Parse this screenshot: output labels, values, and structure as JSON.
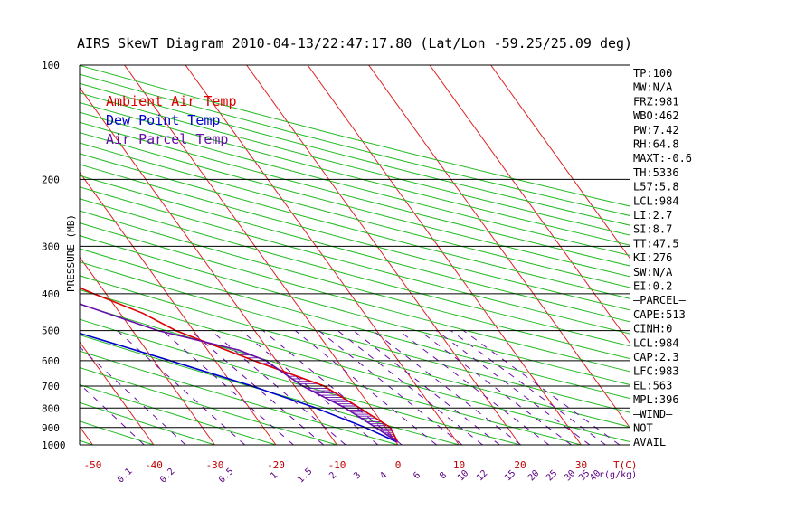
{
  "title": "AIRS SkewT Diagram 2010-04-13/22:47:17.80 (Lat/Lon -59.25/25.09 deg)",
  "colors": {
    "ambient": "#dd0000",
    "dewpoint": "#0000cc",
    "parcel": "#6a0dad",
    "isotherm": "#dd2222",
    "dry_adiabat": "#22bb22",
    "mixing_ratio": "#6a0dad",
    "isobar": "#000000",
    "cape_hatch": "#6a0dad"
  },
  "legend": [
    {
      "label": "Ambient Air Temp",
      "color": "#dd0000"
    },
    {
      "label": "Dew Point Temp",
      "color": "#0000cc"
    },
    {
      "label": "Air Parcel Temp",
      "color": "#6a0dad"
    }
  ],
  "chart_data": {
    "type": "line",
    "title": "AIRS SkewT Diagram 2010-04-13/22:47:17.80 (Lat/Lon -59.25/25.09 deg)",
    "ylabel": "PRESSURE (MB)",
    "y_scale": "log",
    "ylim": [
      1000,
      100
    ],
    "pressure_ticks": [
      100,
      200,
      300,
      400,
      500,
      600,
      700,
      800,
      900,
      1000
    ],
    "temp_top_ticks": [
      -120,
      -110,
      -100,
      -90,
      -80,
      -70,
      -60,
      -50,
      -40
    ],
    "temp_bottom_ticks": [
      -50,
      -40,
      -30,
      -20,
      -10,
      0,
      10,
      20,
      30
    ],
    "temp_bottom_unit": "T(C)",
    "mixing_ratio_ticks": [
      "0.1",
      "0.2",
      "0.5",
      "1",
      "1.5",
      "2",
      "3",
      "4",
      "6",
      "8",
      "10",
      "12",
      "15",
      "20",
      "25",
      "30",
      "35",
      "40"
    ],
    "mixing_ratio_unit": "r(g/kg)",
    "series": [
      {
        "name": "Ambient Air Temp",
        "points": [
          [
            100,
            -43.2
          ],
          [
            200,
            -53.7
          ],
          [
            250,
            -49.4
          ],
          [
            300,
            -46.4
          ],
          [
            350,
            -37.9
          ],
          [
            400,
            -32.0
          ],
          [
            450,
            -26.3
          ],
          [
            500,
            -22.9
          ],
          [
            600,
            -13.7
          ],
          [
            700,
            -5.2
          ],
          [
            800,
            -1.9
          ],
          [
            900,
            0.8
          ],
          [
            981,
            0.3
          ]
        ]
      },
      {
        "name": "Dew Point Temp",
        "points": [
          [
            100,
            -100.5
          ],
          [
            150,
            -88.4
          ],
          [
            200,
            -80.9
          ],
          [
            250,
            -73.6
          ],
          [
            300,
            -66.2
          ],
          [
            400,
            -55.8
          ],
          [
            500,
            -40.1
          ],
          [
            600,
            -27.4
          ],
          [
            700,
            -17.0
          ],
          [
            800,
            -9.1
          ],
          [
            900,
            -3.3
          ],
          [
            981,
            0.1
          ]
        ]
      },
      {
        "name": "Air Parcel Temp",
        "points": [
          [
            100,
            -120.3
          ],
          [
            150,
            -96.7
          ],
          [
            200,
            -81.7
          ],
          [
            300,
            -58.9
          ],
          [
            400,
            -39.2
          ],
          [
            500,
            -25.8
          ],
          [
            563,
            -14.9
          ],
          [
            600,
            -11.7
          ],
          [
            700,
            -8.7
          ],
          [
            800,
            -4.3
          ],
          [
            900,
            -1.6
          ],
          [
            983,
            0.3
          ]
        ]
      }
    ]
  },
  "stats": [
    "TP:100",
    "MW:N/A",
    "FRZ:981",
    "WBO:462",
    "PW:7.42",
    "RH:64.8",
    "MAXT:-0.6",
    "TH:5336",
    "L57:5.8",
    "LCL:984",
    "LI:2.7",
    "SI:8.7",
    "TT:47.5",
    "KI:276",
    "SW:N/A",
    "EI:0.2",
    "—PARCEL—",
    "CAPE:513",
    "CINH:0",
    "LCL:984",
    "CAP:2.3",
    "LFC:983",
    "EL:563",
    "MPL:396",
    "—WIND—",
    "NOT",
    "AVAIL"
  ]
}
